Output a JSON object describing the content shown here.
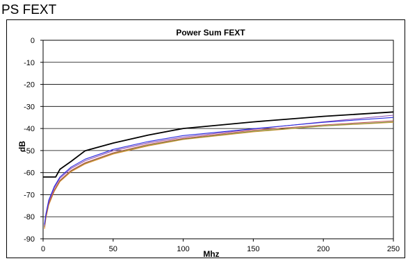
{
  "page": {
    "heading": "PS FEXT"
  },
  "chart_data": {
    "type": "line",
    "title": "Power Sum FEXT",
    "xlabel": "Mhz",
    "ylabel": "dB",
    "xlim": [
      0,
      250
    ],
    "ylim": [
      -90,
      0
    ],
    "x_ticks": [
      "0",
      "50",
      "100",
      "150",
      "200",
      "250"
    ],
    "y_ticks": [
      "0",
      "-10",
      "-20",
      "-30",
      "-40",
      "-50",
      "-60",
      "-70",
      "-80",
      "-90"
    ],
    "grid": "horizontal",
    "legend": "none",
    "series": [
      {
        "color": "#000000",
        "x": [
          0,
          9,
          12,
          20,
          30,
          50,
          75,
          100,
          150,
          200,
          250
        ],
        "y": [
          -62,
          -62,
          -58.5,
          -54.9,
          -50.1,
          -46.6,
          -43.0,
          -40.0,
          -37.0,
          -34.5,
          -32.5
        ]
      },
      {
        "color": "#2a2ae0",
        "x": [
          1,
          2,
          4,
          8,
          12,
          20,
          30,
          50,
          75,
          100,
          150,
          200,
          250
        ],
        "y": [
          -83.5,
          -78.8,
          -72.5,
          -66.3,
          -62.0,
          -57.5,
          -53.9,
          -49.5,
          -45.9,
          -43.2,
          -40.1,
          -37.2,
          -35.0
        ]
      },
      {
        "color": "#8a4fb0",
        "x": [
          1,
          2,
          4,
          8,
          12,
          20,
          30,
          50,
          75,
          100,
          150,
          200,
          250
        ],
        "y": [
          -84.0,
          -79.4,
          -73.1,
          -66.9,
          -62.6,
          -58.1,
          -54.6,
          -50.1,
          -46.5,
          -43.9,
          -40.3,
          -37.0,
          -34.0
        ]
      },
      {
        "color": "#c0504d",
        "x": [
          1,
          2,
          4,
          8,
          12,
          20,
          30,
          50,
          75,
          100,
          150,
          200,
          250
        ],
        "y": [
          -84.5,
          -80.0,
          -74.0,
          -67.9,
          -63.5,
          -59.0,
          -55.5,
          -51.0,
          -47.2,
          -44.5,
          -40.8,
          -38.4,
          -36.5
        ]
      },
      {
        "color": "#7a9a3a",
        "x": [
          1,
          2,
          4,
          8,
          12,
          20,
          30,
          50,
          75,
          100,
          150,
          200,
          250
        ],
        "y": [
          -84.8,
          -80.3,
          -74.3,
          -68.2,
          -63.8,
          -59.3,
          -55.8,
          -51.3,
          -47.6,
          -44.8,
          -41.3,
          -38.8,
          -37.0
        ]
      },
      {
        "color": "#f08a30",
        "x": [
          1,
          2,
          4,
          8,
          12,
          20,
          30,
          50,
          75,
          100,
          150,
          200,
          250
        ],
        "y": [
          -85.5,
          -80.8,
          -74.7,
          -68.5,
          -64.1,
          -59.6,
          -56.1,
          -51.6,
          -47.9,
          -45.0,
          -41.5,
          -38.9,
          -37.2
        ]
      }
    ]
  }
}
